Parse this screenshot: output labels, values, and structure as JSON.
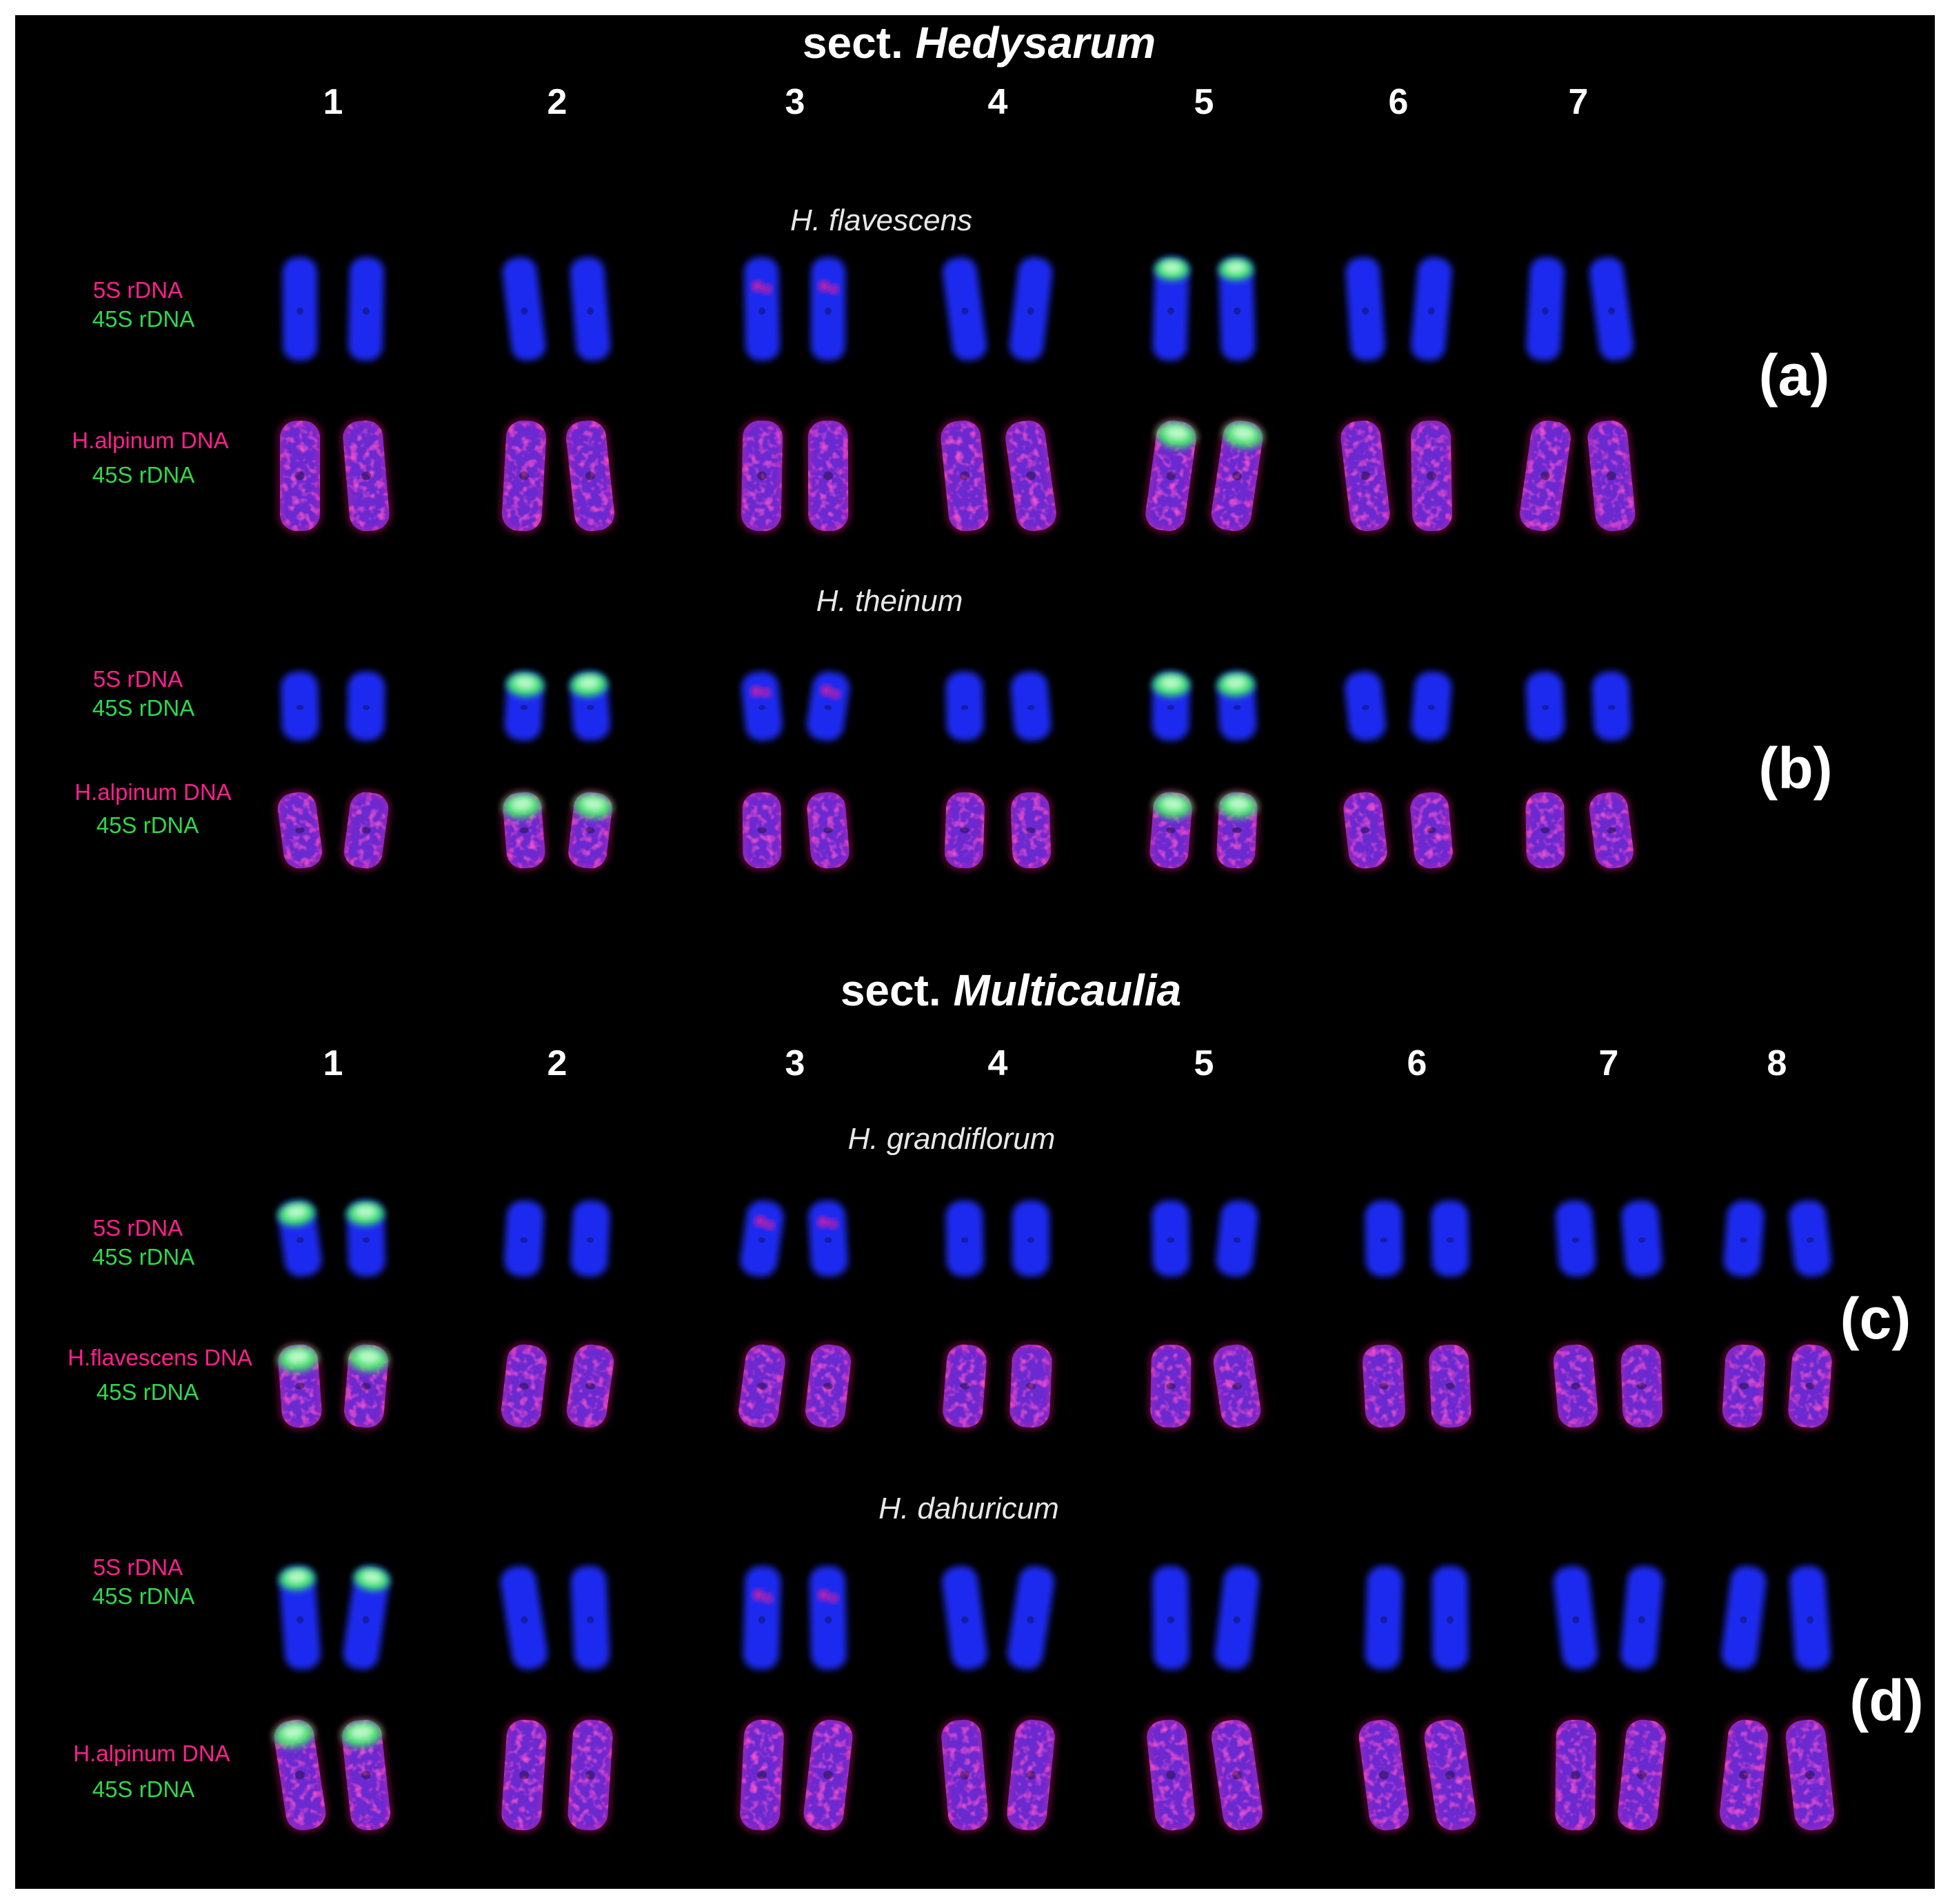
{
  "sections": [
    {
      "title_prefix": "sect.",
      "title_italic": "Hedysarum",
      "column_numbers": [
        "1",
        "2",
        "3",
        "4",
        "5",
        "6",
        "7"
      ],
      "panels": [
        {
          "species": "H. flavescens",
          "label": "(a)",
          "rows": [
            {
              "probe_magenta": "5S rDNA",
              "probe_green": "45S rDNA",
              "stain": "dapi"
            },
            {
              "probe_magenta": "H.alpinum DNA",
              "probe_green": "45S rDNA",
              "stain": "merge"
            }
          ]
        },
        {
          "species": "H. theinum",
          "label": "(b)",
          "rows": [
            {
              "probe_magenta": "5S rDNA",
              "probe_green": "45S rDNA",
              "stain": "dapi"
            },
            {
              "probe_magenta": "H.alpinum DNA",
              "probe_green": "45S rDNA",
              "stain": "merge"
            }
          ]
        }
      ]
    },
    {
      "title_prefix": "sect.",
      "title_italic": "Multicaulia",
      "column_numbers": [
        "1",
        "2",
        "3",
        "4",
        "5",
        "6",
        "7",
        "8"
      ],
      "panels": [
        {
          "species": "H. grandiflorum",
          "label": "(c)",
          "rows": [
            {
              "probe_magenta": "5S rDNA",
              "probe_green": "45S rDNA",
              "stain": "dapi"
            },
            {
              "probe_magenta": "H.flavescens DNA",
              "probe_green": "45S rDNA",
              "stain": "merge"
            }
          ]
        },
        {
          "species": "H. dahuricum",
          "label": "(d)",
          "rows": [
            {
              "probe_magenta": "5S rDNA",
              "probe_green": "45S rDNA",
              "stain": "dapi"
            },
            {
              "probe_magenta": "H.alpinum DNA",
              "probe_green": "45S rDNA",
              "stain": "merge"
            }
          ]
        }
      ]
    }
  ],
  "colors": {
    "background": "#000000",
    "dapi_blue": "#1a2cf0",
    "probe_magenta": "#ff1f8e",
    "probe_green": "#2fd84a",
    "merge_purple": "#6a2ad0",
    "nor_green": "#3cf060"
  }
}
